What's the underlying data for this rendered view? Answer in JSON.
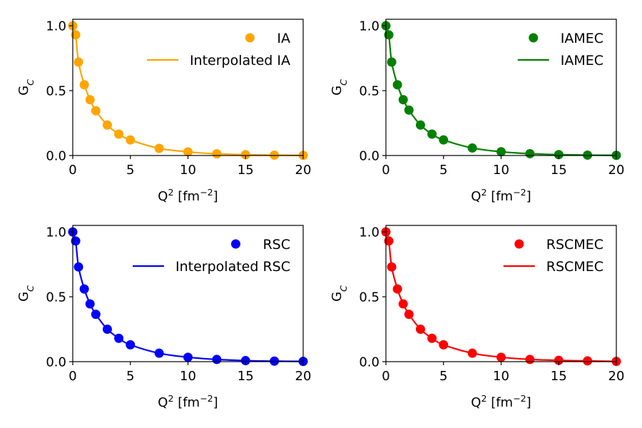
{
  "chart_data": [
    {
      "type": "scatter",
      "xlabel": "Q² [fm⁻²]",
      "ylabel": "G_C",
      "xlim": [
        0,
        20
      ],
      "ylim": [
        0,
        1.05
      ],
      "xticks": [
        "0",
        "5",
        "10",
        "15",
        "20"
      ],
      "yticks": [
        "0.0",
        "0.5",
        "1.0"
      ],
      "legend_position": "top-right",
      "color": "#ffa500",
      "series": [
        {
          "name": "IA",
          "kind": "markers",
          "x": [
            0,
            0.25,
            0.5,
            1,
            1.5,
            2,
            3,
            4,
            5,
            7.5,
            10,
            12.5,
            15,
            17.5,
            20
          ],
          "y": [
            1.0,
            0.93,
            0.72,
            0.545,
            0.43,
            0.345,
            0.235,
            0.165,
            0.12,
            0.055,
            0.028,
            0.013,
            0.006,
            0.003,
            0.0015
          ]
        },
        {
          "name": "Interpolated IA",
          "kind": "line",
          "x": [
            0,
            0.25,
            0.5,
            1,
            1.5,
            2,
            3,
            4,
            5,
            7.5,
            10,
            12.5,
            15,
            17.5,
            20
          ],
          "y": [
            1.0,
            0.93,
            0.72,
            0.545,
            0.43,
            0.345,
            0.235,
            0.165,
            0.12,
            0.055,
            0.028,
            0.013,
            0.006,
            0.003,
            0.0015
          ]
        }
      ]
    },
    {
      "type": "scatter",
      "xlabel": "Q² [fm⁻²]",
      "ylabel": "G_C",
      "xlim": [
        0,
        20
      ],
      "ylim": [
        0,
        1.05
      ],
      "xticks": [
        "0",
        "5",
        "10",
        "15",
        "20"
      ],
      "yticks": [
        "0.0",
        "0.5",
        "1.0"
      ],
      "legend_position": "top-right",
      "color": "#008000",
      "series": [
        {
          "name": "IAMEC",
          "kind": "markers",
          "x": [
            0,
            0.25,
            0.5,
            1,
            1.5,
            2,
            3,
            4,
            5,
            7.5,
            10,
            12.5,
            15,
            17.5,
            20
          ],
          "y": [
            1.0,
            0.93,
            0.72,
            0.545,
            0.43,
            0.35,
            0.235,
            0.165,
            0.12,
            0.058,
            0.029,
            0.014,
            0.007,
            0.003,
            0.0015
          ]
        },
        {
          "name": "IAMEC",
          "kind": "line",
          "x": [
            0,
            0.25,
            0.5,
            1,
            1.5,
            2,
            3,
            4,
            5,
            7.5,
            10,
            12.5,
            15,
            17.5,
            20
          ],
          "y": [
            1.0,
            0.93,
            0.72,
            0.545,
            0.43,
            0.35,
            0.235,
            0.165,
            0.12,
            0.058,
            0.029,
            0.014,
            0.007,
            0.003,
            0.0015
          ]
        }
      ]
    },
    {
      "type": "scatter",
      "xlabel": "Q² [fm⁻²]",
      "ylabel": "G_C",
      "xlim": [
        0,
        20
      ],
      "ylim": [
        0,
        1.05
      ],
      "xticks": [
        "0",
        "5",
        "10",
        "15",
        "20"
      ],
      "yticks": [
        "0.0",
        "0.5",
        "1.0"
      ],
      "legend_position": "top-right",
      "color": "#0000ff",
      "series": [
        {
          "name": "RSC",
          "kind": "markers",
          "x": [
            0,
            0.25,
            0.5,
            1,
            1.5,
            2,
            3,
            4,
            5,
            7.5,
            10,
            12.5,
            15,
            17.5,
            20
          ],
          "y": [
            1.0,
            0.93,
            0.73,
            0.56,
            0.445,
            0.365,
            0.25,
            0.18,
            0.13,
            0.065,
            0.034,
            0.017,
            0.008,
            0.004,
            0.002
          ]
        },
        {
          "name": "Interpolated RSC",
          "kind": "line",
          "x": [
            0,
            0.25,
            0.5,
            1,
            1.5,
            2,
            3,
            4,
            5,
            7.5,
            10,
            12.5,
            15,
            17.5,
            20
          ],
          "y": [
            1.0,
            0.93,
            0.73,
            0.56,
            0.445,
            0.365,
            0.25,
            0.18,
            0.13,
            0.065,
            0.034,
            0.017,
            0.008,
            0.004,
            0.002
          ]
        }
      ]
    },
    {
      "type": "scatter",
      "xlabel": "Q² [fm⁻²]",
      "ylabel": "G_C",
      "xlim": [
        0,
        20
      ],
      "ylim": [
        0,
        1.05
      ],
      "xticks": [
        "0",
        "5",
        "10",
        "15",
        "20"
      ],
      "yticks": [
        "0.0",
        "0.5",
        "1.0"
      ],
      "legend_position": "top-right",
      "color": "#ff0000",
      "series": [
        {
          "name": "RSCMEC",
          "kind": "markers",
          "x": [
            0,
            0.25,
            0.5,
            1,
            1.5,
            2,
            3,
            4,
            5,
            7.5,
            10,
            12.5,
            15,
            17.5,
            20
          ],
          "y": [
            1.0,
            0.93,
            0.73,
            0.56,
            0.445,
            0.365,
            0.25,
            0.18,
            0.13,
            0.065,
            0.034,
            0.017,
            0.01,
            0.006,
            0.002
          ]
        },
        {
          "name": "RSCMEC",
          "kind": "line",
          "x": [
            0,
            0.25,
            0.5,
            1,
            1.5,
            2,
            3,
            4,
            5,
            7.5,
            10,
            12.5,
            15,
            17.5,
            20
          ],
          "y": [
            1.0,
            0.93,
            0.73,
            0.56,
            0.445,
            0.365,
            0.25,
            0.18,
            0.13,
            0.065,
            0.034,
            0.017,
            0.01,
            0.006,
            0.002
          ]
        }
      ]
    }
  ]
}
